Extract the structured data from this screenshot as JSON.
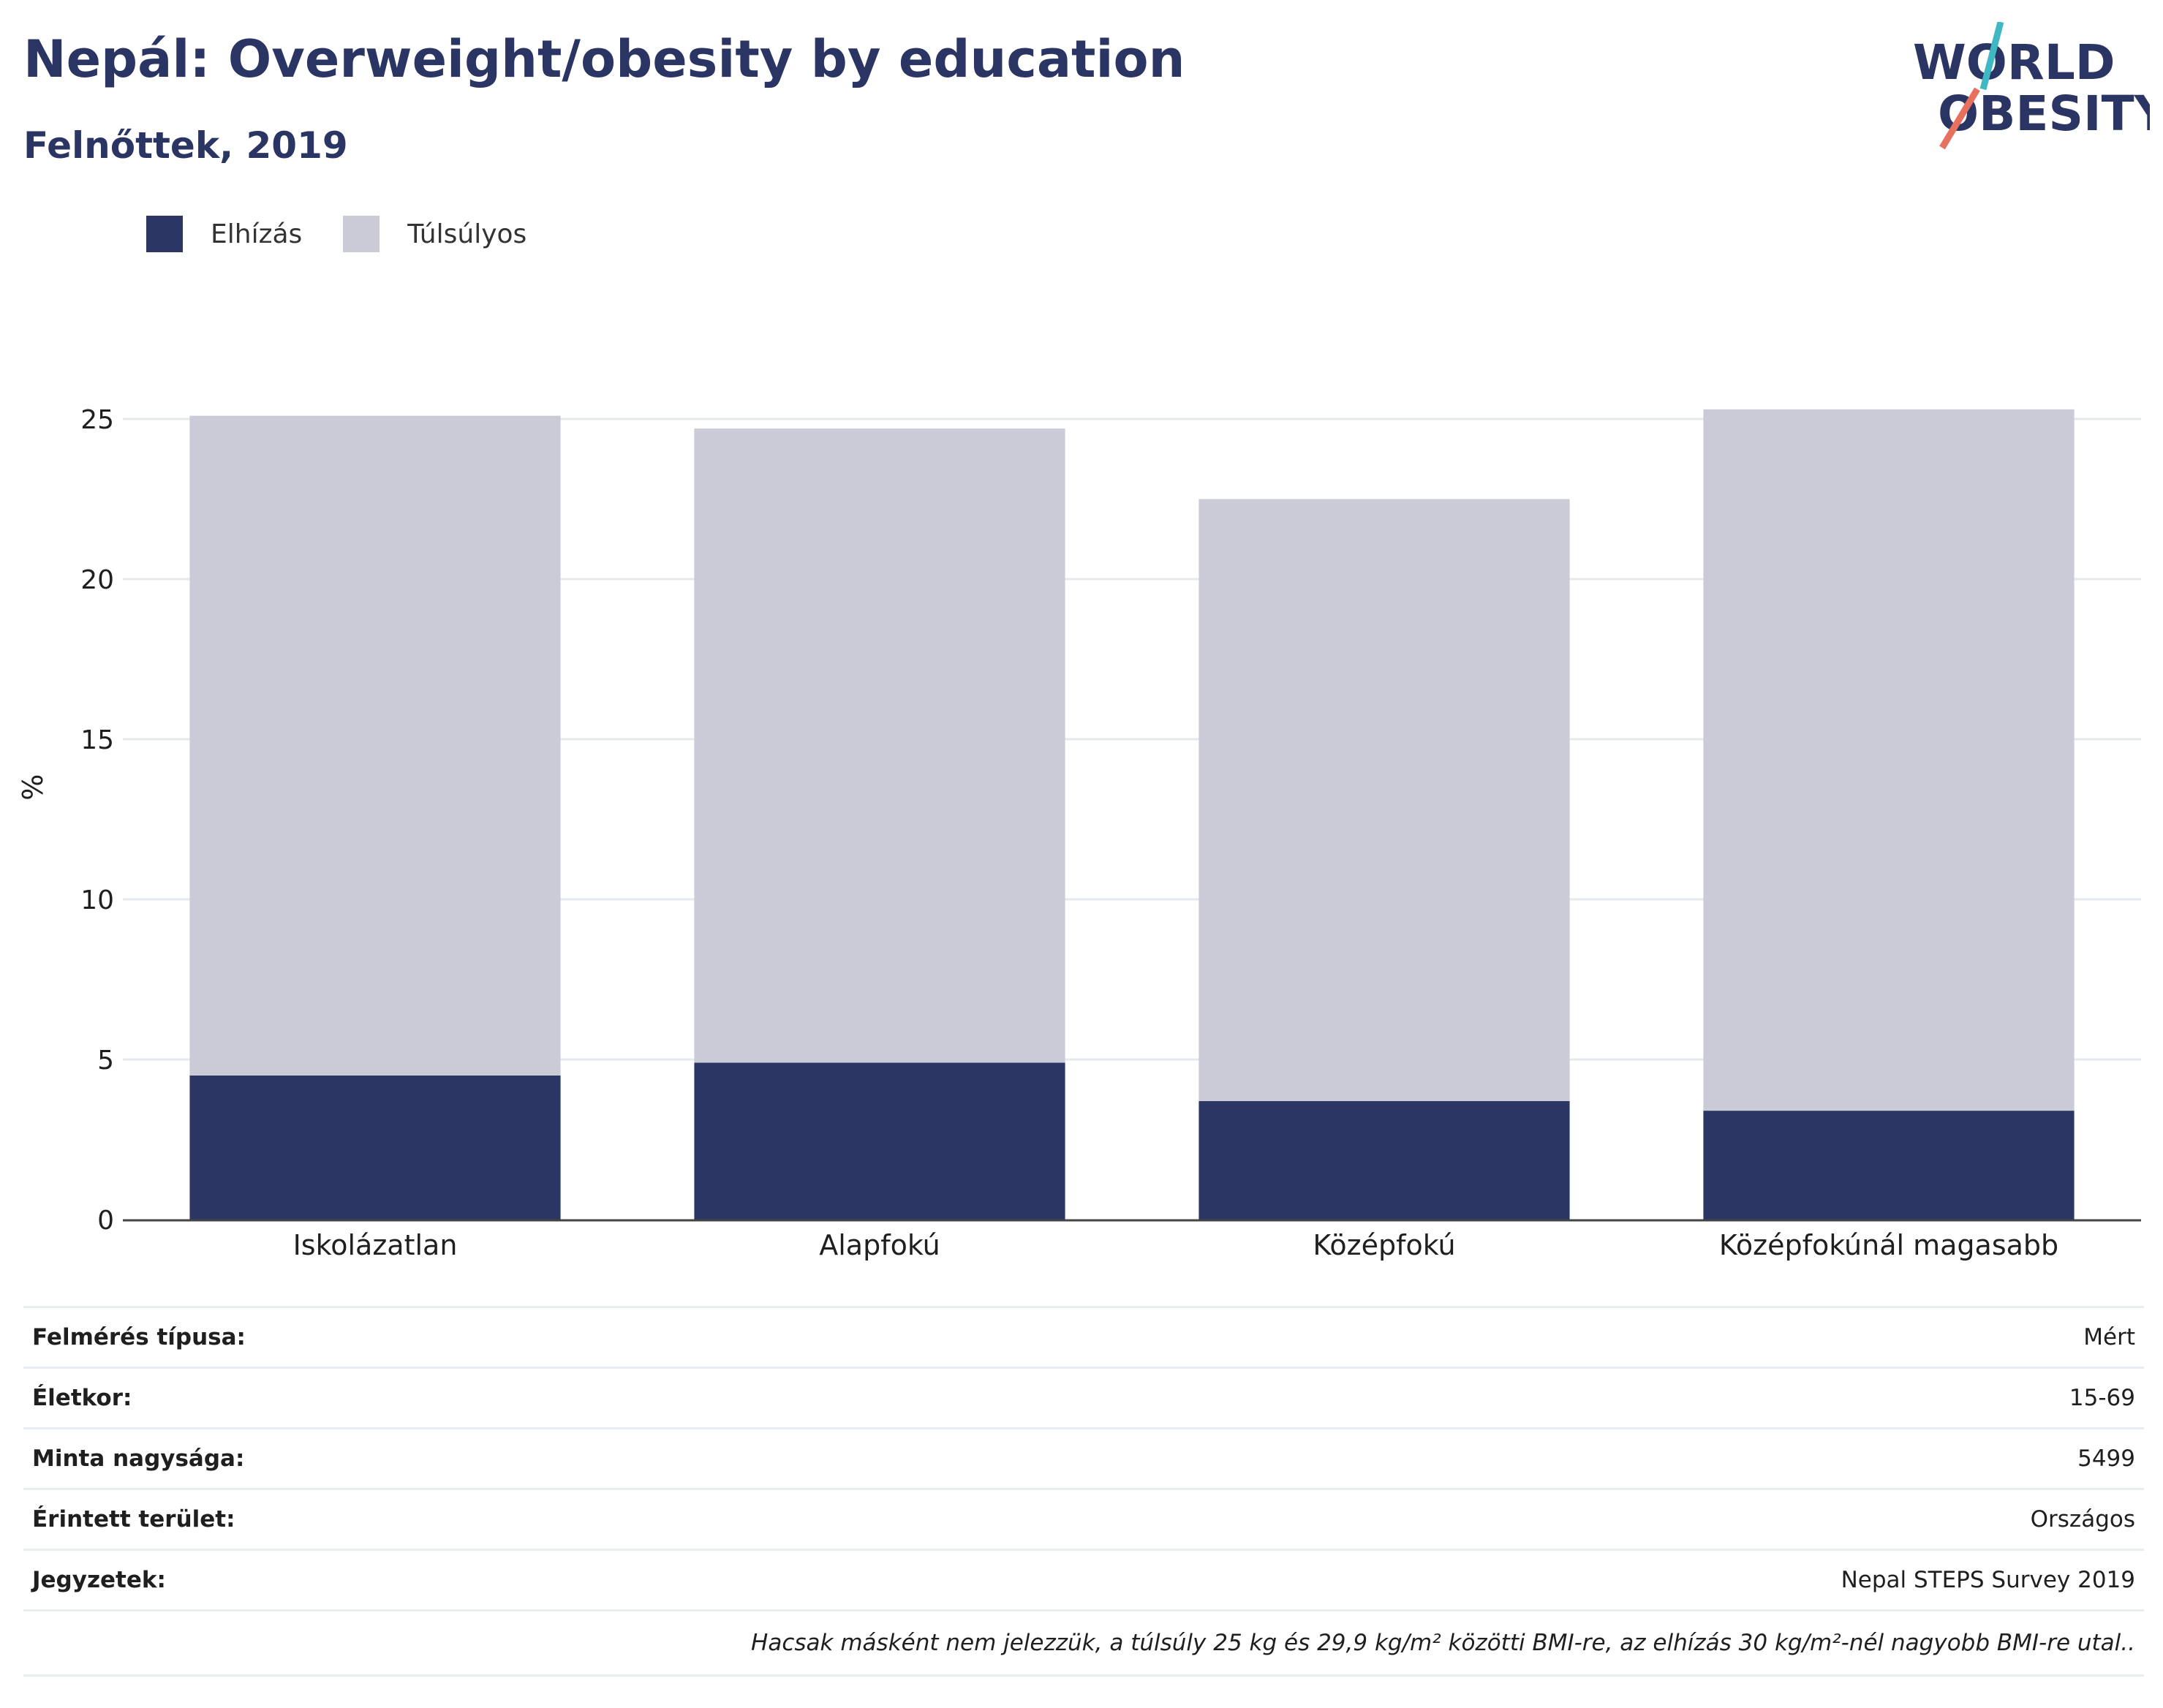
{
  "header": {
    "title": "Nepál: Overweight/obesity by education",
    "subtitle": "Felnőttek, 2019",
    "logo_line1": "WORLD",
    "logo_line2": "OBESITY"
  },
  "chart_data": {
    "type": "bar",
    "stacked": true,
    "categories": [
      "Iskolázatlan",
      "Alapfokú",
      "Középfokú",
      "Középfokúnál magasabb"
    ],
    "series": [
      {
        "name": "Elhízás",
        "color": "#2b3664",
        "values": [
          4.5,
          4.9,
          3.7,
          3.4
        ]
      },
      {
        "name": "Túlsúlyos",
        "color": "#cacbd7",
        "values": [
          20.6,
          19.8,
          18.8,
          21.9
        ]
      }
    ],
    "ylabel": "%",
    "xlabel": "",
    "ylim": [
      0,
      27
    ],
    "yticks": [
      0,
      5,
      10,
      15,
      20,
      25
    ],
    "grid": true,
    "legend_position": "top-left"
  },
  "meta": {
    "rows": [
      {
        "label": "Felmérés típusa:",
        "value": "Mért"
      },
      {
        "label": "Életkor:",
        "value": "15-69"
      },
      {
        "label": "Minta nagysága:",
        "value": "5499"
      },
      {
        "label": "Érintett terület:",
        "value": "Országos"
      },
      {
        "label": "Jegyzetek:",
        "value": "Nepal STEPS Survey 2019"
      }
    ],
    "note": "Hacsak másként nem jelezzük, a túlsúly 25 kg és 29,9 kg/m² közötti BMI-re, az elhízás 30 kg/m²-nél nagyobb BMI-re utal.."
  },
  "colors": {
    "primary": "#2b3664",
    "light": "#cacbd7",
    "accent_teal": "#3fb8c4",
    "accent_coral": "#e8705f"
  }
}
